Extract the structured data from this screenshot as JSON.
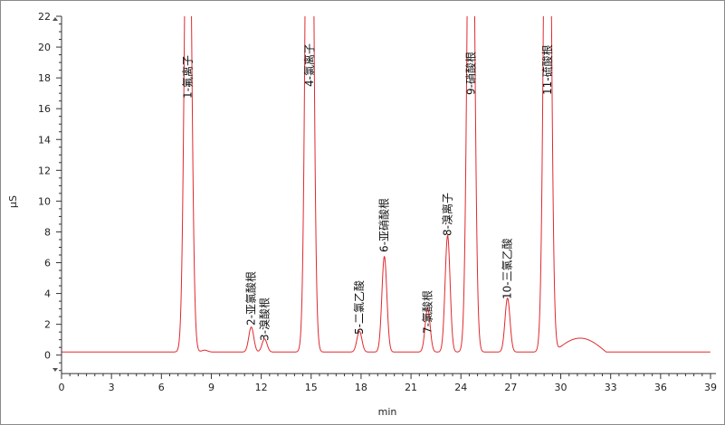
{
  "chart_data": {
    "type": "line",
    "xlabel": "min",
    "ylabel": "µS",
    "xlim": [
      0,
      39
    ],
    "ylim": [
      -1.2,
      22
    ],
    "x_ticks": [
      "0",
      "3",
      "6",
      "9",
      "12",
      "15",
      "18",
      "21",
      "24",
      "27",
      "30",
      "33",
      "36",
      "39"
    ],
    "y_ticks": [
      "0",
      "2",
      "4",
      "6",
      "8",
      "10",
      "12",
      "14",
      "16",
      "18",
      "20",
      "22"
    ],
    "baseline": 0.2,
    "series_color": "#e0282e",
    "peaks": [
      {
        "label": "1-氟离子",
        "rt": 7.6,
        "height": 40
      },
      {
        "label": "2-亚氯酸根",
        "rt": 11.4,
        "height": 1.62
      },
      {
        "label": "3-溴酸根",
        "rt": 12.2,
        "height": 0.85
      },
      {
        "label": "4-氯离子",
        "rt": 14.9,
        "height": 60
      },
      {
        "label": "5-二氯乙酸",
        "rt": 17.9,
        "height": 1.35
      },
      {
        "label": "6-亚硝酸根",
        "rt": 19.4,
        "height": 6.2
      },
      {
        "label": "7-氯酸根",
        "rt": 22.0,
        "height": 2.85
      },
      {
        "label": "8-溴离子",
        "rt": 23.2,
        "height": 7.55
      },
      {
        "label": "9-硝酸根",
        "rt": 24.6,
        "height": 45
      },
      {
        "label": "10-三氯乙酸",
        "rt": 26.8,
        "height": 3.5
      },
      {
        "label": "11-硫酸根",
        "rt": 29.2,
        "height": 50
      }
    ]
  }
}
